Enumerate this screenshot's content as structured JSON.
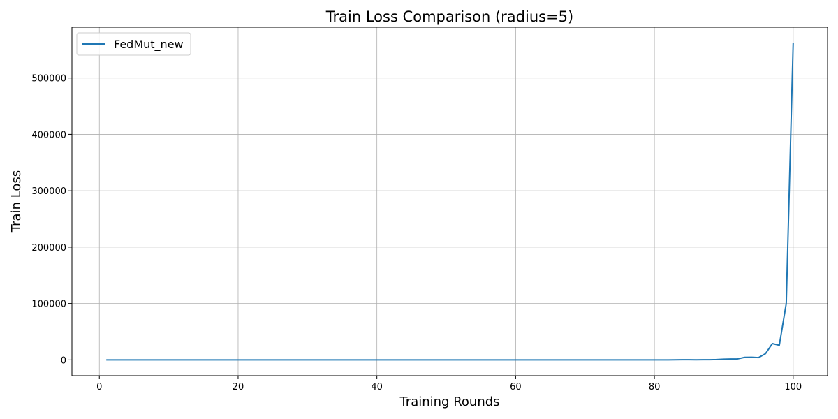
{
  "chart_data": {
    "type": "line",
    "title": "Train Loss Comparison (radius=5)",
    "xlabel": "Training Rounds",
    "ylabel": "Train Loss",
    "xlim": [
      -3.95,
      104.95
    ],
    "ylim": [
      -28000,
      590000
    ],
    "xticks": [
      0,
      20,
      40,
      60,
      80,
      100
    ],
    "yticks": [
      0,
      100000,
      200000,
      300000,
      400000,
      500000
    ],
    "grid": true,
    "legend_position": "top-left",
    "series": [
      {
        "name": "FedMut_new",
        "color": "#1f77b4",
        "x": [
          1,
          2,
          3,
          4,
          5,
          6,
          7,
          8,
          9,
          10,
          11,
          12,
          13,
          14,
          15,
          16,
          17,
          18,
          19,
          20,
          21,
          22,
          23,
          24,
          25,
          26,
          27,
          28,
          29,
          30,
          31,
          32,
          33,
          34,
          35,
          36,
          37,
          38,
          39,
          40,
          41,
          42,
          43,
          44,
          45,
          46,
          47,
          48,
          49,
          50,
          51,
          52,
          53,
          54,
          55,
          56,
          57,
          58,
          59,
          60,
          61,
          62,
          63,
          64,
          65,
          66,
          67,
          68,
          69,
          70,
          71,
          72,
          73,
          74,
          75,
          76,
          77,
          78,
          79,
          80,
          81,
          82,
          83,
          84,
          85,
          86,
          87,
          88,
          89,
          90,
          91,
          92,
          93,
          94,
          95,
          96,
          97,
          98,
          99,
          100
        ],
        "y": [
          3,
          3,
          3,
          3,
          3,
          3,
          3,
          3,
          3,
          3,
          3,
          3,
          3,
          3,
          3,
          3,
          3,
          3,
          3,
          3,
          3,
          3,
          3,
          3,
          3,
          3,
          3,
          3,
          3,
          3,
          3,
          3,
          3,
          3,
          3,
          3,
          3,
          3,
          3,
          3,
          3,
          3,
          3,
          3,
          3,
          3,
          3,
          3,
          3,
          3,
          3,
          3,
          3,
          3,
          3,
          3,
          3,
          3,
          3,
          3,
          3,
          3,
          3,
          3,
          3,
          3,
          3,
          3,
          3,
          3,
          3,
          3,
          3,
          3,
          3,
          3,
          5,
          8,
          12,
          20,
          40,
          80,
          150,
          300,
          280,
          250,
          300,
          400,
          600,
          1200,
          1500,
          1800,
          4500,
          4600,
          4000,
          11000,
          29000,
          26000,
          100000,
          562000
        ]
      }
    ]
  }
}
